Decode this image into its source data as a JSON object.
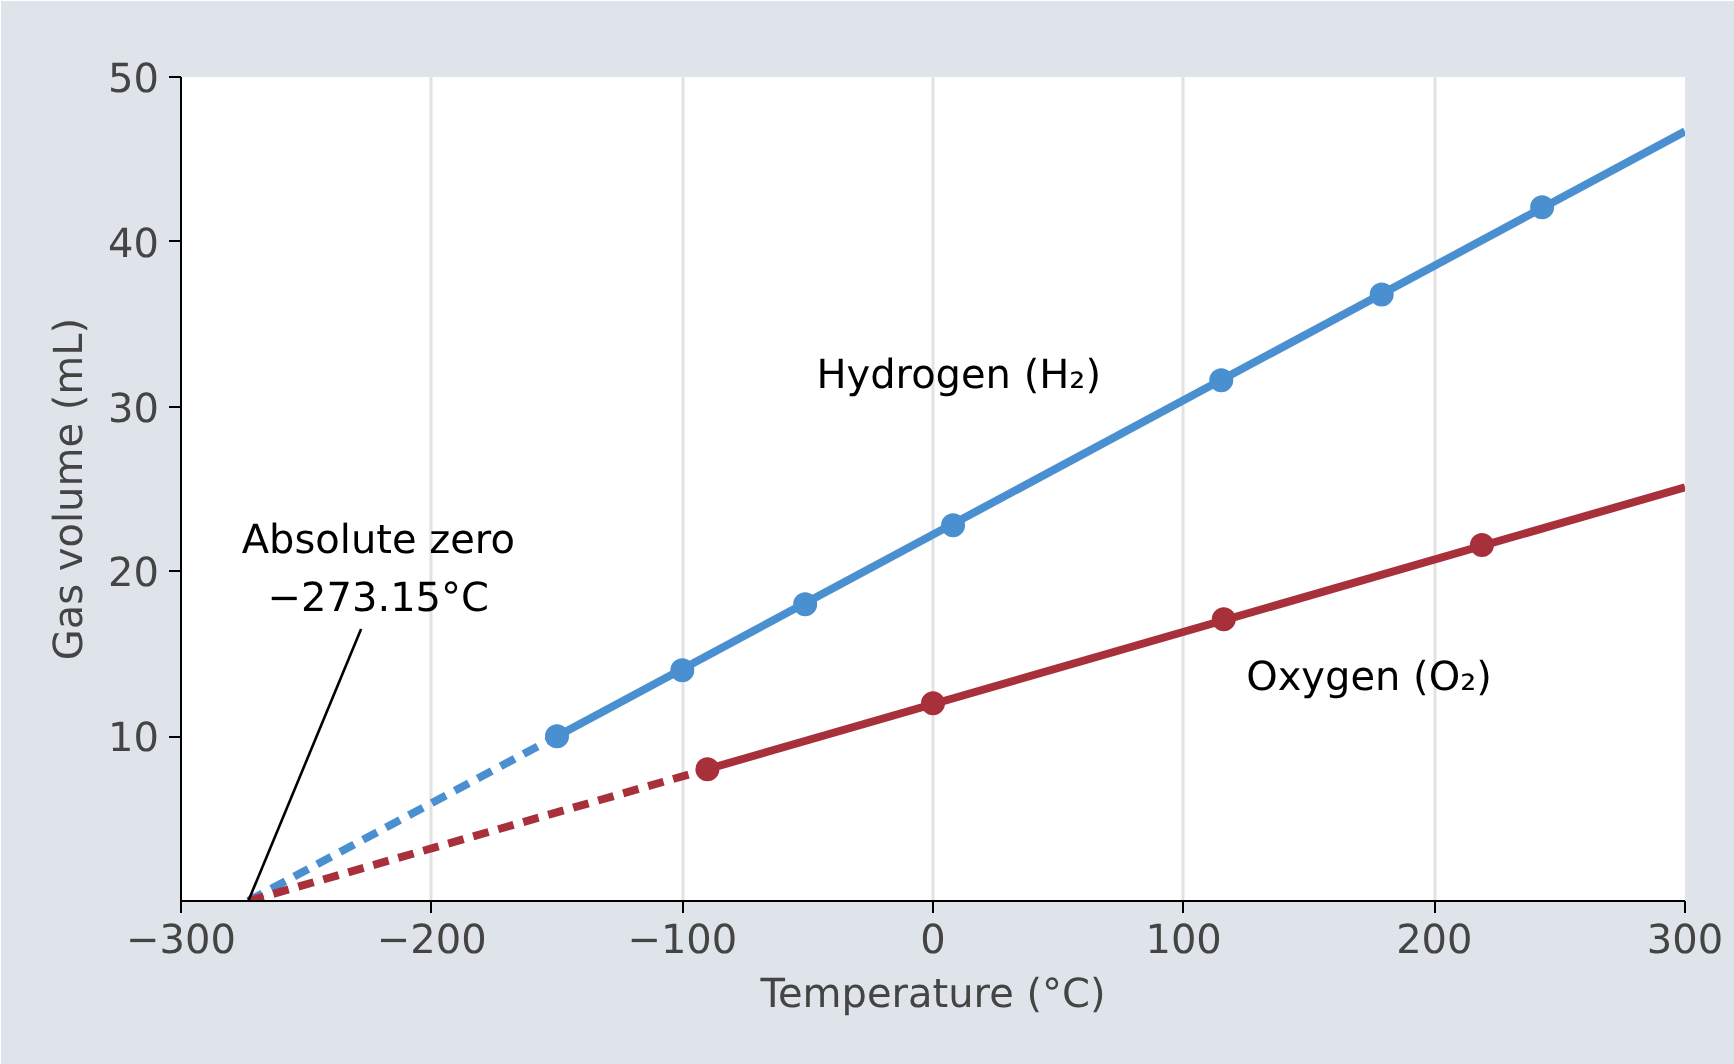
{
  "chart_data": {
    "type": "line",
    "xlabel": "Temperature (°C)",
    "ylabel": "Gas volume (mL)",
    "xlim": [
      -300,
      300
    ],
    "ylim": [
      0,
      50
    ],
    "xticks": [
      {
        "value": -300,
        "label": "−300"
      },
      {
        "value": -200,
        "label": "−200"
      },
      {
        "value": -100,
        "label": "−100"
      },
      0,
      100,
      200,
      300
    ],
    "yticks": [
      10,
      20,
      30,
      40,
      50
    ],
    "grid": "x",
    "series": [
      {
        "color": "#4a90d0",
        "line_style": "dashed",
        "marker": "none",
        "x": [
          -273.15,
          -150
        ],
        "values": [
          0,
          10
        ]
      },
      {
        "name": "Hydrogen (H₂)",
        "color": "#4a90d0",
        "line_style": "solid",
        "marker": "none",
        "x": [
          -150,
          300
        ],
        "values": [
          10,
          46.7
        ]
      },
      {
        "type": "scatter",
        "color": "#4a90d0",
        "marker": "circle",
        "x": [
          -150,
          -100,
          -51,
          8,
          115,
          179,
          243
        ],
        "values": [
          10,
          14,
          18,
          22.8,
          31.6,
          36.8,
          42.1
        ]
      },
      {
        "color": "#a8303a",
        "line_style": "dashed",
        "marker": "none",
        "x": [
          -273.15,
          -90
        ],
        "values": [
          0,
          8
        ]
      },
      {
        "name": "Oxygen (O₂)",
        "color": "#a8303a",
        "line_style": "solid",
        "marker": "none",
        "x": [
          -90,
          300
        ],
        "values": [
          8,
          25.1
        ]
      },
      {
        "type": "scatter",
        "color": "#a8303a",
        "marker": "circle",
        "x": [
          -90,
          0,
          116,
          219
        ],
        "values": [
          8,
          12,
          17.1,
          21.6
        ]
      }
    ],
    "annotations": [
      {
        "text": "Absolute zero\n−273.15°C",
        "x": -273.15,
        "y": 0
      }
    ]
  }
}
